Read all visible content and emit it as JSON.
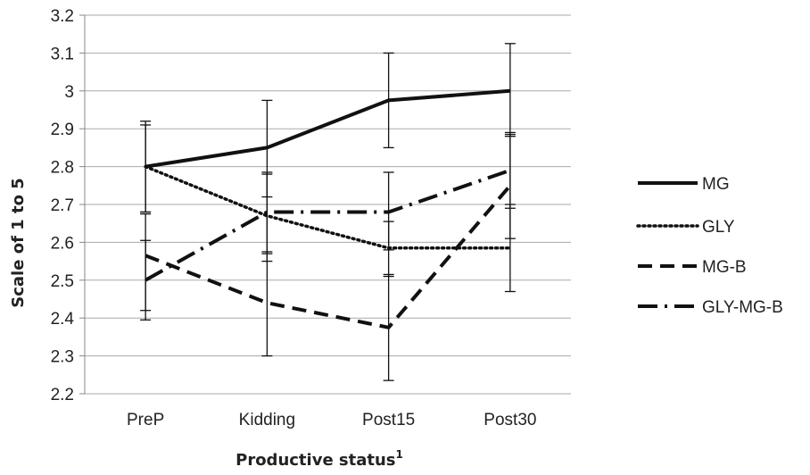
{
  "chart_data": {
    "type": "line",
    "title": "",
    "xlabel": "Productive status",
    "xlabel_superscript": "1",
    "ylabel": "Scale of 1 to 5",
    "categories": [
      "PreP",
      "Kidding",
      "Post15",
      "Post30"
    ],
    "ylim": [
      2.2,
      3.2
    ],
    "yticks": [
      "2.2",
      "2.3",
      "2.4",
      "2.5",
      "2.6",
      "2.7",
      "2.8",
      "2.9",
      "3",
      "3.1",
      "3.2"
    ],
    "grid": true,
    "legend_position": "right",
    "series": [
      {
        "name": "MG",
        "style": "solid",
        "values": [
          2.8,
          2.85,
          2.975,
          3.0
        ],
        "err_low": [
          2.68,
          2.72,
          2.85,
          2.88
        ],
        "err_high": [
          2.92,
          2.975,
          3.1,
          3.125
        ]
      },
      {
        "name": "GLY",
        "style": "dotted",
        "values": [
          2.8,
          2.67,
          2.585,
          2.585
        ],
        "err_low": [
          2.68,
          2.55,
          2.51,
          2.47
        ],
        "err_high": [
          2.91,
          2.785,
          2.655,
          2.7
        ]
      },
      {
        "name": "MG-B",
        "style": "dashed",
        "values": [
          2.565,
          2.44,
          2.375,
          2.75
        ],
        "err_low": [
          2.395,
          2.3,
          2.235,
          2.61
        ],
        "err_high": [
          2.675,
          2.575,
          2.515,
          2.89
        ]
      },
      {
        "name": "GLY-MG-B",
        "style": "dashdot",
        "values": [
          2.5,
          2.68,
          2.68,
          2.79
        ],
        "err_low": [
          2.42,
          2.57,
          2.58,
          2.69
        ],
        "err_high": [
          2.605,
          2.78,
          2.785,
          2.885
        ]
      }
    ],
    "colors": {
      "line": "#111111",
      "grid": "#aaaaaa",
      "axis": "#888888"
    }
  }
}
